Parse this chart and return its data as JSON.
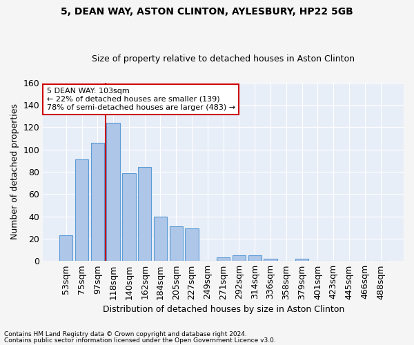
{
  "title_line1": "5, DEAN WAY, ASTON CLINTON, AYLESBURY, HP22 5GB",
  "title_line2": "Size of property relative to detached houses in Aston Clinton",
  "xlabel": "Distribution of detached houses by size in Aston Clinton",
  "ylabel": "Number of detached properties",
  "footnote_line1": "Contains HM Land Registry data © Crown copyright and database right 2024.",
  "footnote_line2": "Contains public sector information licensed under the Open Government Licence v3.0.",
  "bar_labels": [
    "53sqm",
    "75sqm",
    "97sqm",
    "118sqm",
    "140sqm",
    "162sqm",
    "184sqm",
    "205sqm",
    "227sqm",
    "249sqm",
    "271sqm",
    "292sqm",
    "314sqm",
    "336sqm",
    "358sqm",
    "379sqm",
    "401sqm",
    "423sqm",
    "445sqm",
    "466sqm",
    "488sqm"
  ],
  "bar_values": [
    23,
    91,
    106,
    124,
    79,
    84,
    40,
    31,
    29,
    0,
    3,
    5,
    5,
    2,
    0,
    2,
    0,
    0,
    0,
    0,
    0
  ],
  "bar_color": "#aec6e8",
  "bar_edge_color": "#5b9bd5",
  "background_color": "#e8eef8",
  "grid_color": "#ffffff",
  "vline_color": "#cc0000",
  "vline_x_index": 2.5,
  "annotation_text": "5 DEAN WAY: 103sqm\n← 22% of detached houses are smaller (139)\n78% of semi-detached houses are larger (483) →",
  "annotation_box_color": "#ffffff",
  "annotation_box_edge": "#cc0000",
  "ylim": [
    0,
    160
  ],
  "yticks": [
    0,
    20,
    40,
    60,
    80,
    100,
    120,
    140,
    160
  ],
  "fig_facecolor": "#f5f5f5"
}
